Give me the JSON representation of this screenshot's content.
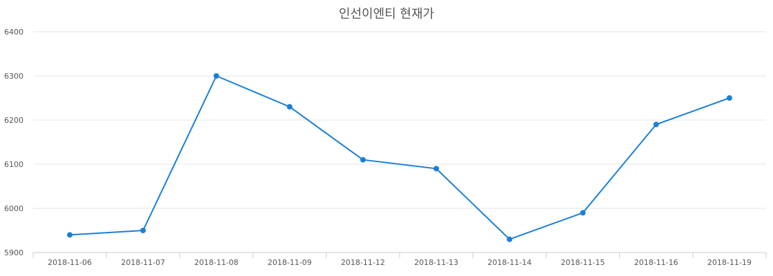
{
  "chart_data": {
    "type": "line",
    "title": "인선이엔티 현재가",
    "categories": [
      "2018-11-06",
      "2018-11-07",
      "2018-11-08",
      "2018-11-09",
      "2018-11-12",
      "2018-11-13",
      "2018-11-14",
      "2018-11-15",
      "2018-11-16",
      "2018-11-19"
    ],
    "series": [
      {
        "values": [
          5940,
          5950,
          6300,
          6230,
          6110,
          6090,
          5930,
          5990,
          6190,
          6250
        ],
        "color": "#1a7fd9"
      }
    ],
    "ylim": [
      5900,
      6400
    ],
    "yticks": [
      "5900",
      "6000",
      "6100",
      "6200",
      "6300",
      "6400"
    ],
    "grid": true,
    "legend": "none"
  }
}
